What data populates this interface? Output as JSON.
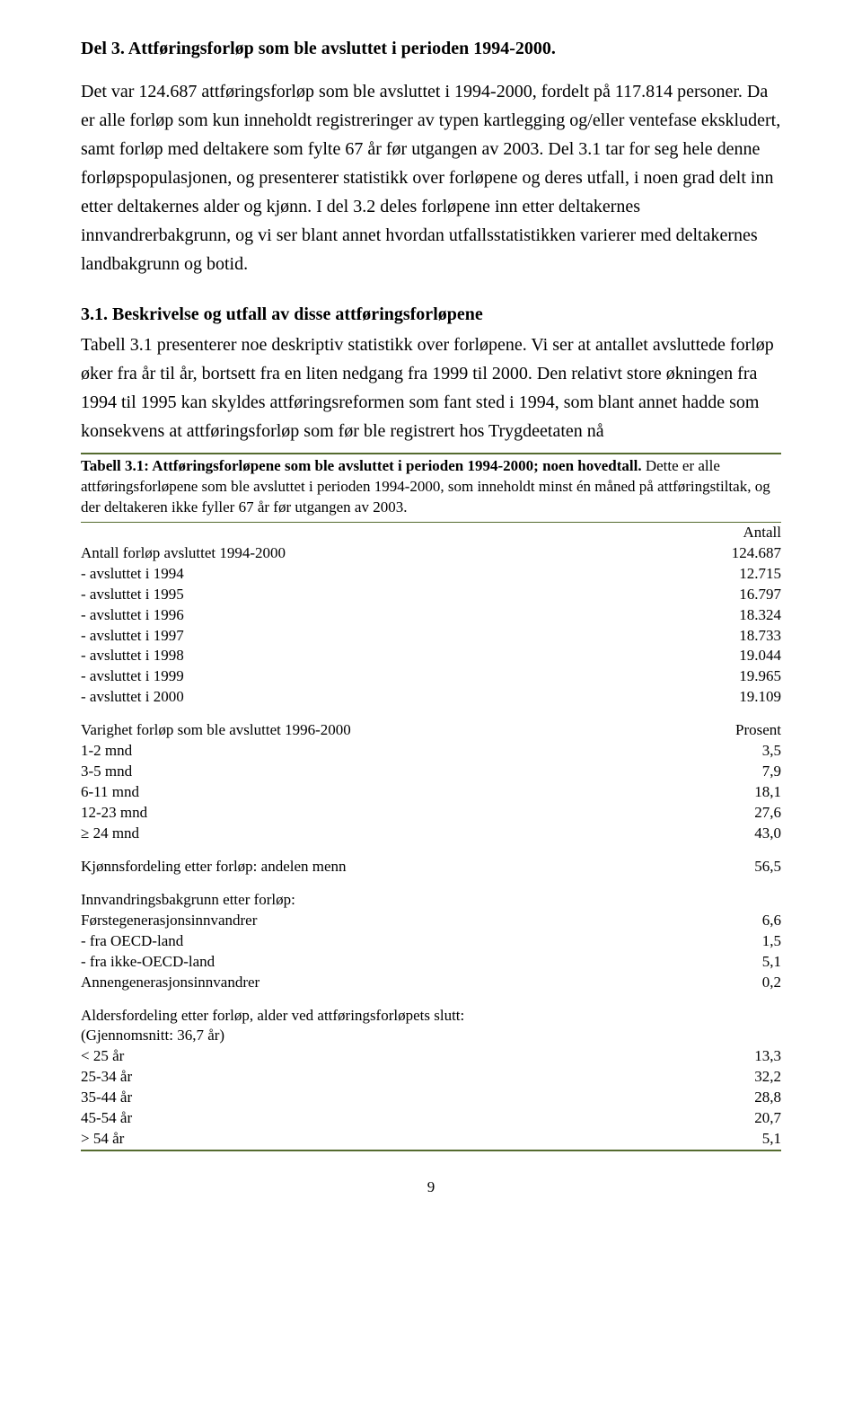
{
  "section": {
    "title": "Del 3. Attføringsforløp som ble avsluttet i perioden 1994-2000.",
    "para1": "Det var 124.687 attføringsforløp som ble avsluttet i 1994-2000, fordelt på 117.814 personer. Da er alle forløp som kun inneholdt registreringer av typen kartlegging og/eller ventefase ekskludert, samt forløp med deltakere som fylte 67 år før utgangen av 2003. Del 3.1 tar for seg hele denne forløpspopulasjonen, og presenterer statistikk over forløpene og deres utfall, i noen grad delt inn etter deltakernes alder og kjønn. I del 3.2 deles forløpene inn etter deltakernes innvandrerbakgrunn, og vi ser blant annet hvordan utfallsstatistikken varierer med deltakernes landbakgrunn og botid."
  },
  "subsection": {
    "title": "3.1. Beskrivelse og utfall av disse attføringsforløpene",
    "para": "Tabell 3.1 presenterer noe deskriptiv statistikk over forløpene. Vi ser at antallet avsluttede forløp øker fra år til år, bortsett fra en liten nedgang fra 1999 til 2000. Den relativt store økningen fra 1994 til 1995 kan skyldes attføringsreformen som fant sted i 1994, som blant annet hadde som konsekvens at attføringsforløp som før ble registrert hos Trygdeetaten nå"
  },
  "table": {
    "caption_bold": "Tabell 3.1: Attføringsforløpene som ble avsluttet i perioden 1994-2000; noen hovedtall.",
    "caption_rest": " Dette er alle attføringsforløpene som ble avsluttet i perioden 1994-2000, som inneholdt minst én måned på attføringstiltak, og der deltakeren ikke fyller 67 år før utgangen av 2003.",
    "header_value": "Antall",
    "group1": {
      "total": {
        "label": "Antall forløp avsluttet 1994-2000",
        "value": "124.687"
      },
      "rows": [
        {
          "label": "- avsluttet i 1994",
          "value": "12.715"
        },
        {
          "label": "- avsluttet i 1995",
          "value": "16.797"
        },
        {
          "label": "- avsluttet i 1996",
          "value": "18.324"
        },
        {
          "label": "- avsluttet i 1997",
          "value": "18.733"
        },
        {
          "label": "- avsluttet i 1998",
          "value": "19.044"
        },
        {
          "label": "- avsluttet i 1999",
          "value": "19.965"
        },
        {
          "label": "- avsluttet i 2000",
          "value": "19.109"
        }
      ]
    },
    "group2": {
      "header": {
        "label": "Varighet forløp som ble avsluttet 1996-2000",
        "value": "Prosent"
      },
      "rows": [
        {
          "label": "1-2 mnd",
          "value": "3,5"
        },
        {
          "label": "3-5 mnd",
          "value": "7,9"
        },
        {
          "label": "6-11 mnd",
          "value": "18,1"
        },
        {
          "label": "12-23 mnd",
          "value": "27,6"
        },
        {
          "label": "≥ 24 mnd",
          "value": "43,0"
        }
      ]
    },
    "group3": {
      "row": {
        "label": "Kjønnsfordeling etter forløp: andelen menn",
        "value": "56,5"
      }
    },
    "group4": {
      "header": {
        "label": "Innvandringsbakgrunn etter forløp:"
      },
      "rows": [
        {
          "label": "Førstegenerasjonsinnvandrer",
          "value": "6,6"
        },
        {
          "label": "- fra OECD-land",
          "value": "1,5"
        },
        {
          "label": "- fra ikke-OECD-land",
          "value": "5,1"
        },
        {
          "label": "Annengenerasjonsinnvandrer",
          "value": "0,2"
        }
      ],
      "indent": [
        "indent1",
        "indent2",
        "indent2",
        "indent1"
      ]
    },
    "group5": {
      "header": {
        "label": "Aldersfordeling etter forløp, alder ved attføringsforløpets slutt:"
      },
      "mean": {
        "label": "(Gjennomsnitt: 36,7 år)"
      },
      "rows": [
        {
          "label": "< 25 år",
          "value": "13,3"
        },
        {
          "label": "25-34 år",
          "value": "32,2"
        },
        {
          "label": "35-44 år",
          "value": "28,8"
        },
        {
          "label": "45-54 år",
          "value": "20,7"
        },
        {
          "label": "> 54 år",
          "value": "5,1"
        }
      ]
    }
  },
  "page_number": "9",
  "colors": {
    "border": "#556b2f",
    "text": "#000000",
    "background": "#ffffff"
  }
}
